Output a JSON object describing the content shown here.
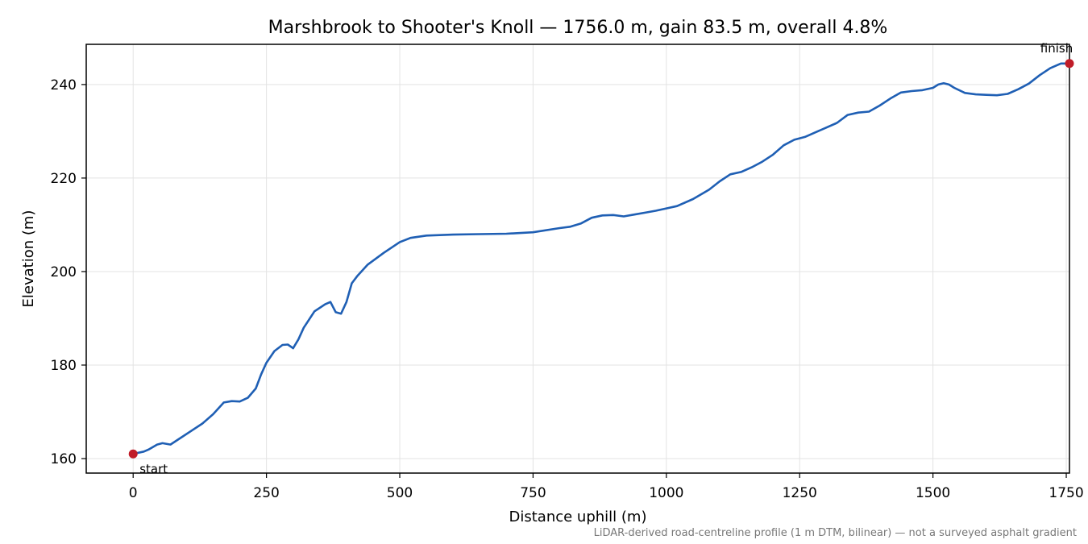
{
  "chart_data": {
    "type": "line",
    "title": "Marshbrook to Shooter's Knoll — 1756.0 m, gain 83.5 m, overall 4.8%",
    "xlabel": "Distance uphill (m)",
    "ylabel": "Elevation (m)",
    "xlim": [
      -88,
      1756
    ],
    "ylim": [
      156.9,
      248.6
    ],
    "xticks": [
      0,
      250,
      500,
      750,
      1000,
      1250,
      1500,
      1750
    ],
    "yticks": [
      160,
      180,
      200,
      220,
      240
    ],
    "grid": true,
    "line_color": "#1f5fb4",
    "marker_color": "#c01c28",
    "footnote": "LiDAR-derived road-centreline profile (1 m DTM, bilinear) — not a surveyed asphalt gradient",
    "annotations": [
      {
        "label": "start",
        "x": 0,
        "y": 161.0
      },
      {
        "label": "finish",
        "x": 1756,
        "y": 244.5
      }
    ],
    "series": [
      {
        "x": [
          0,
          20,
          30,
          45,
          55,
          70,
          90,
          110,
          130,
          150,
          170,
          185,
          200,
          215,
          230,
          240,
          250,
          265,
          280,
          290,
          300,
          310,
          320,
          340,
          360,
          370,
          380,
          390,
          400,
          410,
          420,
          440,
          470,
          500,
          520,
          550,
          600,
          650,
          700,
          750,
          800,
          820,
          840,
          860,
          880,
          900,
          920,
          940,
          960,
          980,
          1000,
          1020,
          1050,
          1080,
          1100,
          1120,
          1140,
          1160,
          1180,
          1200,
          1220,
          1240,
          1260,
          1280,
          1300,
          1320,
          1340,
          1360,
          1380,
          1400,
          1420,
          1440,
          1460,
          1480,
          1500,
          1510,
          1520,
          1530,
          1540,
          1560,
          1580,
          1600,
          1620,
          1640,
          1660,
          1680,
          1700,
          1720,
          1740,
          1756
        ],
        "values": [
          161.0,
          161.5,
          162.0,
          163.0,
          163.3,
          163.0,
          164.5,
          166.0,
          167.5,
          169.5,
          172.0,
          172.3,
          172.2,
          173.0,
          175.0,
          178.0,
          180.5,
          183.0,
          184.3,
          184.4,
          183.6,
          185.5,
          188.0,
          191.5,
          193.0,
          193.5,
          191.3,
          191.0,
          193.5,
          197.5,
          199.0,
          201.5,
          204.0,
          206.3,
          207.2,
          207.7,
          207.9,
          208.0,
          208.1,
          208.4,
          209.3,
          209.6,
          210.3,
          211.5,
          212.0,
          212.1,
          211.8,
          212.2,
          212.6,
          213.0,
          213.5,
          214.0,
          215.5,
          217.5,
          219.3,
          220.8,
          221.3,
          222.3,
          223.5,
          225.0,
          227.0,
          228.2,
          228.8,
          229.8,
          230.8,
          231.8,
          233.5,
          234.0,
          234.2,
          235.5,
          237.0,
          238.3,
          238.6,
          238.8,
          239.3,
          240.0,
          240.3,
          240.0,
          239.3,
          238.2,
          237.9,
          237.8,
          237.7,
          238.0,
          239.0,
          240.2,
          242.0,
          243.5,
          244.5,
          244.5
        ]
      }
    ]
  }
}
